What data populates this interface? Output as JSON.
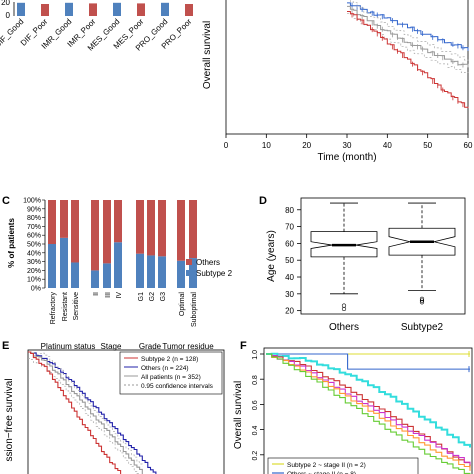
{
  "colors": {
    "red": "#cc3333",
    "blue": "#3366cc",
    "navy": "#2222aa",
    "bar_red": "#c0504d",
    "bar_blue": "#4f81bd",
    "gray": "#999999",
    "cyan": "#33dddd",
    "yellow": "#dddd33",
    "green": "#66cc33",
    "orange": "#ff9933",
    "magenta": "#cc33cc"
  },
  "chart_data": [
    {
      "id": "A",
      "type": "bar",
      "panel_label": "",
      "categories": [
        "DIF_Good",
        "DIF_Poor",
        "IMR_Good",
        "IMR_Poor",
        "MES_Good",
        "MES_Poor",
        "PRO_Good",
        "PRO_Poor"
      ],
      "values": [
        22,
        20,
        22,
        21,
        22,
        21,
        22,
        20
      ],
      "bar_colors": [
        "blue",
        "red",
        "blue",
        "red",
        "blue",
        "red",
        "blue",
        "red"
      ],
      "yticks": [
        0,
        20
      ],
      "ylim": [
        0,
        30
      ],
      "xlabel": "",
      "ylabel": "",
      "title": ""
    },
    {
      "id": "B",
      "type": "line",
      "panel_label": "",
      "ylabel": "Overall survival",
      "xlabel": "Time (month)",
      "xticks": [
        0,
        10,
        20,
        30,
        40,
        50,
        60
      ],
      "xlim": [
        0,
        60
      ],
      "ylim": [
        0.25,
        1.05
      ],
      "series": [
        {
          "color": "blue",
          "x": [
            30,
            35,
            40,
            45,
            50,
            55,
            60
          ],
          "y": [
            1.01,
            0.96,
            0.92,
            0.87,
            0.82,
            0.78,
            0.74
          ]
        },
        {
          "color": "gray",
          "x": [
            30,
            35,
            40,
            45,
            50,
            55,
            60
          ],
          "y": [
            0.99,
            0.91,
            0.84,
            0.78,
            0.73,
            0.68,
            0.64
          ]
        },
        {
          "color": "red",
          "x": [
            30,
            35,
            40,
            45,
            50,
            55,
            60
          ],
          "y": [
            0.96,
            0.88,
            0.78,
            0.68,
            0.58,
            0.48,
            0.4
          ]
        }
      ]
    },
    {
      "id": "C",
      "type": "bar",
      "panel_label": "C",
      "ylabel": "% of patients",
      "yticks": [
        "0%",
        "10%",
        "20%",
        "30%",
        "40%",
        "50%",
        "60%",
        "70%",
        "80%",
        "90%",
        "100%"
      ],
      "ylim": [
        0,
        100
      ],
      "categories": [
        "Refractory",
        "Resistant",
        "Sensitive",
        "II",
        "III",
        "IV",
        "G1",
        "G2",
        "G3",
        "Optimal",
        "Suboptimal"
      ],
      "groups": [
        "Platinum status",
        "Stage",
        "Grade",
        "Tumor residue disease"
      ],
      "series": [
        {
          "name": "Subtype 2",
          "color": "bar_blue",
          "values": [
            50,
            57,
            29,
            20,
            28,
            52,
            39,
            37,
            36,
            31,
            34
          ]
        },
        {
          "name": "Others",
          "color": "bar_red",
          "values": [
            50,
            43,
            71,
            80,
            72,
            48,
            61,
            63,
            64,
            69,
            66
          ]
        }
      ],
      "legend_position": "right"
    },
    {
      "id": "D",
      "type": "box",
      "panel_label": "D",
      "ylabel": "Age (years)",
      "yticks": [
        20,
        30,
        40,
        50,
        60,
        70,
        80
      ],
      "ylim": [
        18,
        87
      ],
      "categories": [
        "Others",
        "Subtype2"
      ],
      "boxes": [
        {
          "min": 30,
          "q1": 52,
          "median": 59,
          "q3": 67,
          "max": 84,
          "notch_lo": 57,
          "notch_hi": 61,
          "outliers": [
            21,
            23
          ]
        },
        {
          "min": 32,
          "q1": 53,
          "median": 61,
          "q3": 69,
          "max": 84,
          "notch_lo": 58,
          "notch_hi": 64,
          "outliers": [
            25,
            26,
            27
          ]
        }
      ]
    },
    {
      "id": "E",
      "type": "line",
      "panel_label": "E",
      "ylabel": "Progression-free survival",
      "ylabel_visible": "ssion−free survival",
      "xlim": [
        0,
        60
      ],
      "ylim": [
        0,
        1.0
      ],
      "legend": [
        {
          "label": "Subtype 2 (n = 128)",
          "color": "red",
          "dash": false
        },
        {
          "label": "Others (n = 224)",
          "color": "navy",
          "dash": false
        },
        {
          "label": "All patients (n = 352)",
          "color": "gray",
          "dash": false
        },
        {
          "label": "0.95 confidence intervals",
          "color": "gray",
          "dash": true
        }
      ],
      "series": [
        {
          "color": "navy",
          "x": [
            0,
            5,
            10,
            15,
            20,
            25,
            30,
            35,
            40
          ],
          "y": [
            1.0,
            0.95,
            0.85,
            0.72,
            0.58,
            0.44,
            0.3,
            0.16,
            0.0
          ]
        },
        {
          "color": "gray",
          "x": [
            0,
            5,
            10,
            15,
            20,
            25,
            30,
            35
          ],
          "y": [
            1.0,
            0.93,
            0.8,
            0.65,
            0.5,
            0.36,
            0.2,
            0.05
          ]
        },
        {
          "color": "red",
          "x": [
            0,
            5,
            10,
            15,
            20,
            25,
            30
          ],
          "y": [
            1.0,
            0.88,
            0.7,
            0.5,
            0.32,
            0.14,
            0.0
          ]
        }
      ]
    },
    {
      "id": "F",
      "type": "line",
      "panel_label": "F",
      "ylabel": "Overall survival",
      "yticks": [
        "0.0",
        "0.2",
        "0.4",
        "0.6",
        "0.8",
        "1.0"
      ],
      "ylim": [
        0,
        1.0
      ],
      "xlim": [
        0,
        60
      ],
      "legend": [
        {
          "label": "Subtype 2 ~ stage II (n = 2)",
          "color": "yellow"
        },
        {
          "label": "Others ~ stage II (n = 8)",
          "color": "blue"
        }
      ],
      "series": [
        {
          "color": "yellow",
          "x": [
            0,
            60
          ],
          "y": [
            1.0,
            1.0
          ]
        },
        {
          "color": "blue",
          "x": [
            0,
            24,
            24,
            60
          ],
          "y": [
            1.0,
            1.0,
            0.88,
            0.88
          ]
        },
        {
          "color": "cyan",
          "x": [
            0,
            10,
            20,
            30,
            40,
            50,
            60
          ],
          "y": [
            1.0,
            0.96,
            0.88,
            0.76,
            0.6,
            0.42,
            0.25
          ]
        },
        {
          "color": "red",
          "x": [
            0,
            10,
            20,
            30,
            40,
            50,
            60
          ],
          "y": [
            1.0,
            0.92,
            0.78,
            0.62,
            0.45,
            0.28,
            0.1
          ]
        },
        {
          "color": "magenta",
          "x": [
            0,
            10,
            20,
            30,
            40,
            50,
            60
          ],
          "y": [
            1.0,
            0.9,
            0.74,
            0.58,
            0.42,
            0.27,
            0.12
          ]
        },
        {
          "color": "orange",
          "x": [
            0,
            10,
            20,
            30,
            40,
            50,
            60
          ],
          "y": [
            1.0,
            0.88,
            0.72,
            0.55,
            0.38,
            0.22,
            0.08
          ]
        },
        {
          "color": "green",
          "x": [
            0,
            10,
            20,
            30,
            40,
            50,
            60
          ],
          "y": [
            1.0,
            0.86,
            0.68,
            0.5,
            0.32,
            0.16,
            0.04
          ]
        }
      ]
    }
  ]
}
